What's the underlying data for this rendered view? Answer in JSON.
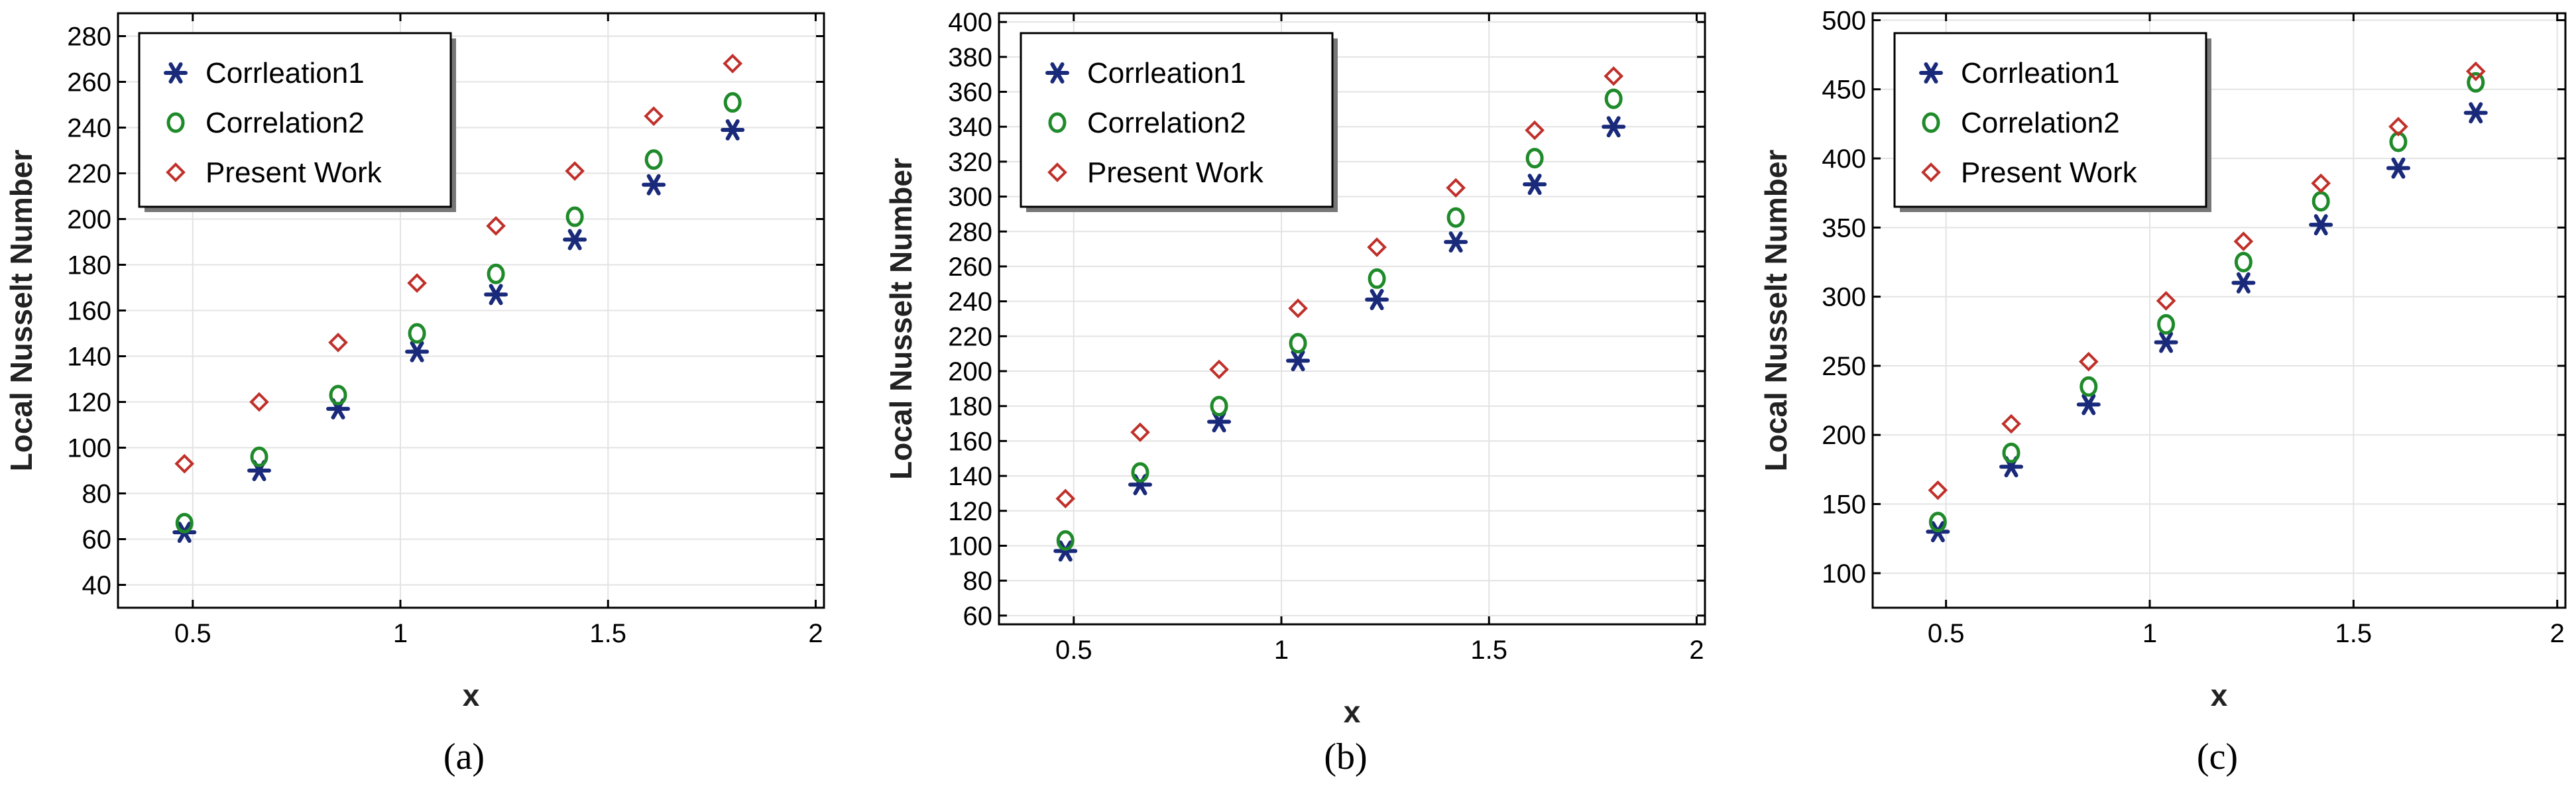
{
  "chart_data": [
    {
      "type": "scatter",
      "caption": "(a)",
      "xlabel": "x",
      "ylabel": "Local Nusselt Number",
      "xlim": [
        0.32,
        2.02
      ],
      "ylim": [
        30,
        290
      ],
      "xticks": [
        0.5,
        1,
        1.5,
        2
      ],
      "xtick_labels": [
        "0.5",
        "1",
        "1.5",
        "2"
      ],
      "yticks": [
        40,
        60,
        80,
        100,
        120,
        140,
        160,
        180,
        200,
        220,
        240,
        260,
        280
      ],
      "ytick_labels": [
        "40",
        "60",
        "80",
        "100",
        "120",
        "140",
        "160",
        "180",
        "200",
        "220",
        "240",
        "260",
        "280"
      ],
      "grid": true,
      "legend_position": "top-left",
      "x": [
        0.48,
        0.66,
        0.85,
        1.04,
        1.23,
        1.42,
        1.61,
        1.8
      ],
      "series": [
        {
          "name": "Corrleation1",
          "marker": "asterisk",
          "color": "#1a2a7a",
          "values": [
            63,
            90,
            117,
            142,
            167,
            191,
            215,
            239
          ]
        },
        {
          "name": "Correlation2",
          "marker": "circle",
          "color": "#1f8a2a",
          "values": [
            67,
            96,
            123,
            150,
            176,
            201,
            226,
            251
          ]
        },
        {
          "name": "Present Work",
          "marker": "diamond",
          "color": "#c0302a",
          "values": [
            93,
            120,
            146,
            172,
            197,
            221,
            245,
            268
          ]
        }
      ]
    },
    {
      "type": "scatter",
      "caption": "(b)",
      "xlabel": "x",
      "ylabel": "Local Nusselt Number",
      "xlim": [
        0.32,
        2.02
      ],
      "ylim": [
        55,
        405
      ],
      "xticks": [
        0.5,
        1,
        1.5,
        2
      ],
      "xtick_labels": [
        "0.5",
        "1",
        "1.5",
        "2"
      ],
      "yticks": [
        60,
        80,
        100,
        120,
        140,
        160,
        180,
        200,
        220,
        240,
        260,
        280,
        300,
        320,
        340,
        360,
        380,
        400
      ],
      "ytick_labels": [
        "60",
        "80",
        "100",
        "120",
        "140",
        "160",
        "180",
        "200",
        "220",
        "240",
        "260",
        "280",
        "300",
        "320",
        "340",
        "360",
        "380",
        "400"
      ],
      "grid": true,
      "legend_position": "top-left",
      "x": [
        0.48,
        0.66,
        0.85,
        1.04,
        1.23,
        1.42,
        1.61,
        1.8
      ],
      "series": [
        {
          "name": "Corrleation1",
          "marker": "asterisk",
          "color": "#1a2a7a",
          "values": [
            97,
            135,
            171,
            206,
            241,
            274,
            307,
            340
          ]
        },
        {
          "name": "Correlation2",
          "marker": "circle",
          "color": "#1f8a2a",
          "values": [
            103,
            142,
            180,
            216,
            253,
            288,
            322,
            356
          ]
        },
        {
          "name": "Present Work",
          "marker": "diamond",
          "color": "#c0302a",
          "values": [
            127,
            165,
            201,
            236,
            271,
            305,
            338,
            369
          ]
        }
      ]
    },
    {
      "type": "scatter",
      "caption": "(c)",
      "xlabel": "x",
      "ylabel": "Local Nusselt Number",
      "xlim": [
        0.32,
        2.02
      ],
      "ylim": [
        75,
        505
      ],
      "xticks": [
        0.5,
        1,
        1.5,
        2
      ],
      "xtick_labels": [
        "0.5",
        "1",
        "1.5",
        "2"
      ],
      "yticks": [
        100,
        150,
        200,
        250,
        300,
        350,
        400,
        450,
        500
      ],
      "ytick_labels": [
        "100",
        "150",
        "200",
        "250",
        "300",
        "350",
        "400",
        "450",
        "500"
      ],
      "grid": true,
      "legend_position": "top-left",
      "x": [
        0.48,
        0.66,
        0.85,
        1.04,
        1.23,
        1.42,
        1.61,
        1.8
      ],
      "series": [
        {
          "name": "Corrleation1",
          "marker": "asterisk",
          "color": "#1a2a7a",
          "values": [
            130,
            177,
            222,
            267,
            310,
            352,
            393,
            433
          ]
        },
        {
          "name": "Correlation2",
          "marker": "circle",
          "color": "#1f8a2a",
          "values": [
            137,
            187,
            235,
            280,
            325,
            369,
            412,
            455
          ]
        },
        {
          "name": "Present Work",
          "marker": "diamond",
          "color": "#c0302a",
          "values": [
            160,
            208,
            253,
            297,
            340,
            382,
            423,
            463
          ]
        }
      ]
    }
  ]
}
